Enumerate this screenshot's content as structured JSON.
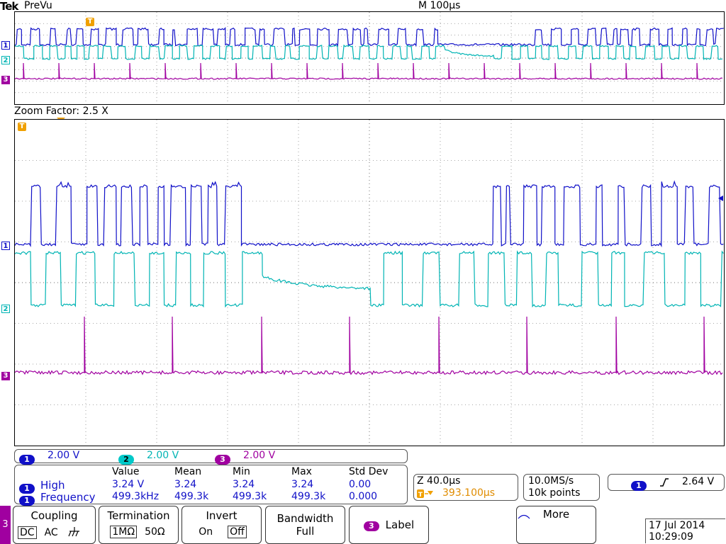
{
  "header": {
    "brand": "Tek",
    "mode": "PreVu",
    "timebase": "M 100µs"
  },
  "zoom_factor": "Zoom Factor: 2.5 X",
  "markers": {
    "trigger": "T",
    "ch1": "1",
    "ch2": "2",
    "ch3": "3"
  },
  "colors": {
    "ch1": "#1010c8",
    "ch2": "#00b4b4",
    "ch3": "#a000a0",
    "trigger": "#f0a000",
    "grid": "#8a8a8a"
  },
  "channel_bar": [
    {
      "num": "1",
      "scale": "2.00 V"
    },
    {
      "num": "2",
      "scale": "2.00 V"
    },
    {
      "num": "3",
      "scale": "2.00 V"
    }
  ],
  "measurements": {
    "headers": [
      "Value",
      "Mean",
      "Min",
      "Max",
      "Std Dev"
    ],
    "rows": [
      {
        "ch": "1",
        "name": "High",
        "value": "3.24 V",
        "mean": "3.24",
        "min": "3.24",
        "max": "3.24",
        "std": "0.00"
      },
      {
        "ch": "1",
        "name": "Frequency",
        "value": "499.3kHz",
        "mean": "499.3k",
        "min": "499.3k",
        "max": "499.3k",
        "std": "0.000"
      }
    ]
  },
  "zoom_info": {
    "scale": "Z 40.0µs",
    "trigger_pos": "393.100µs"
  },
  "acq": {
    "rate": "10.0MS/s",
    "points": "10k points"
  },
  "trigger": {
    "ch": "1",
    "level": "2.64 V"
  },
  "side_tab": "3",
  "menu": {
    "coupling": {
      "label": "Coupling",
      "options": [
        "DC",
        "AC"
      ]
    },
    "termination": {
      "label": "Termination",
      "options": [
        "1MΩ",
        "50Ω"
      ]
    },
    "invert": {
      "label": "Invert",
      "options": [
        "On",
        "Off"
      ]
    },
    "bandwidth": {
      "label": "Bandwidth",
      "value": "Full"
    },
    "label_btn": {
      "ch": "3",
      "label": "Label"
    },
    "more": {
      "label": "More"
    }
  },
  "datetime": {
    "date": "17 Jul  2014",
    "time": "10:29:09"
  }
}
